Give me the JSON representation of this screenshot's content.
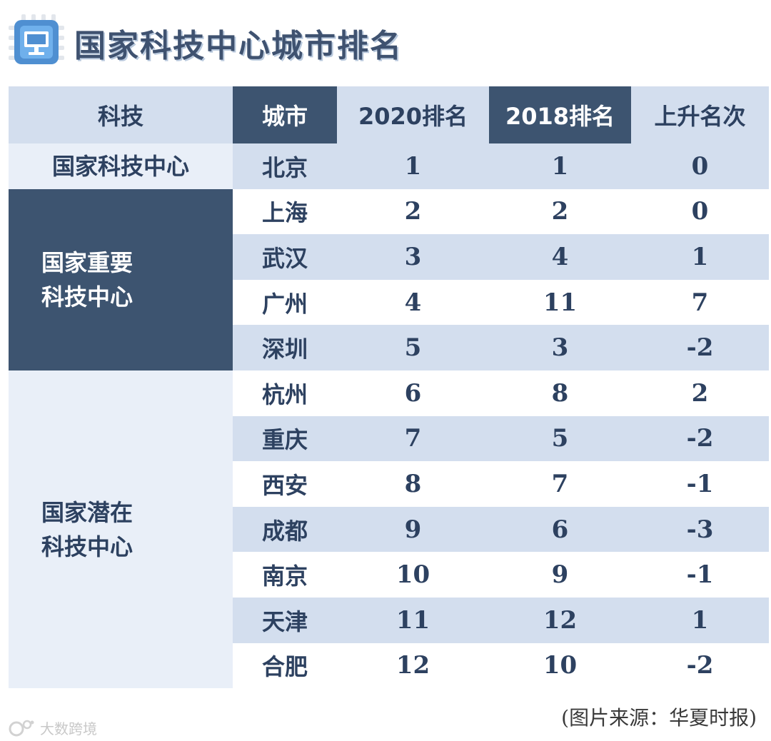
{
  "title": "国家科技中心城市排名",
  "headers": {
    "category": "科技",
    "city": "城市",
    "rank_2020": "2020排名",
    "rank_2018": "2018排名",
    "change": "上升名次"
  },
  "groups": [
    {
      "label_lines": [
        "国家科技中心"
      ],
      "row_start": 0,
      "row_count": 1,
      "style": "light"
    },
    {
      "label_lines": [
        "国家重要",
        "科技中心"
      ],
      "row_start": 1,
      "row_count": 4,
      "style": "dark"
    },
    {
      "label_lines": [
        "国家潜在",
        "科技中心"
      ],
      "row_start": 5,
      "row_count": 7,
      "style": "light"
    }
  ],
  "rows": [
    {
      "city": "北京",
      "rank_2020": "1",
      "rank_2018": "1",
      "change": "0"
    },
    {
      "city": "上海",
      "rank_2020": "2",
      "rank_2018": "2",
      "change": "0"
    },
    {
      "city": "武汉",
      "rank_2020": "3",
      "rank_2018": "4",
      "change": "1"
    },
    {
      "city": "广州",
      "rank_2020": "4",
      "rank_2018": "11",
      "change": "7"
    },
    {
      "city": "深圳",
      "rank_2020": "5",
      "rank_2018": "3",
      "change": "-2"
    },
    {
      "city": "杭州",
      "rank_2020": "6",
      "rank_2018": "8",
      "change": "2"
    },
    {
      "city": "重庆",
      "rank_2020": "7",
      "rank_2018": "5",
      "change": "-2"
    },
    {
      "city": "西安",
      "rank_2020": "8",
      "rank_2018": "7",
      "change": "-1"
    },
    {
      "city": "成都",
      "rank_2020": "9",
      "rank_2018": "6",
      "change": "-3"
    },
    {
      "city": "南京",
      "rank_2020": "10",
      "rank_2018": "9",
      "change": "-1"
    },
    {
      "city": "天津",
      "rank_2020": "11",
      "rank_2018": "12",
      "change": "1"
    },
    {
      "city": "合肥",
      "rank_2020": "12",
      "rank_2018": "10",
      "change": "-2"
    }
  ],
  "source_note": "(图片来源：华夏时报)",
  "watermark": "大数跨境",
  "colors": {
    "dark": "#3d5470",
    "light_band": "#d3deee",
    "pale": "#e9eff8",
    "text_dark": "#2d4160",
    "text_light": "#ffffff"
  },
  "chart_data": {
    "type": "table",
    "title": "国家科技中心城市排名",
    "columns": [
      "科技",
      "城市",
      "2020排名",
      "2018排名",
      "上升名次"
    ],
    "rows": [
      [
        "国家科技中心",
        "北京",
        1,
        1,
        0
      ],
      [
        "国家重要科技中心",
        "上海",
        2,
        2,
        0
      ],
      [
        "国家重要科技中心",
        "武汉",
        3,
        4,
        1
      ],
      [
        "国家重要科技中心",
        "广州",
        4,
        11,
        7
      ],
      [
        "国家重要科技中心",
        "深圳",
        5,
        3,
        -2
      ],
      [
        "国家潜在科技中心",
        "杭州",
        6,
        8,
        2
      ],
      [
        "国家潜在科技中心",
        "重庆",
        7,
        5,
        -2
      ],
      [
        "国家潜在科技中心",
        "西安",
        8,
        7,
        -1
      ],
      [
        "国家潜在科技中心",
        "成都",
        9,
        6,
        -3
      ],
      [
        "国家潜在科技中心",
        "南京",
        10,
        9,
        -1
      ],
      [
        "国家潜在科技中心",
        "天津",
        11,
        12,
        1
      ],
      [
        "国家潜在科技中心",
        "合肥",
        12,
        10,
        -2
      ]
    ]
  }
}
